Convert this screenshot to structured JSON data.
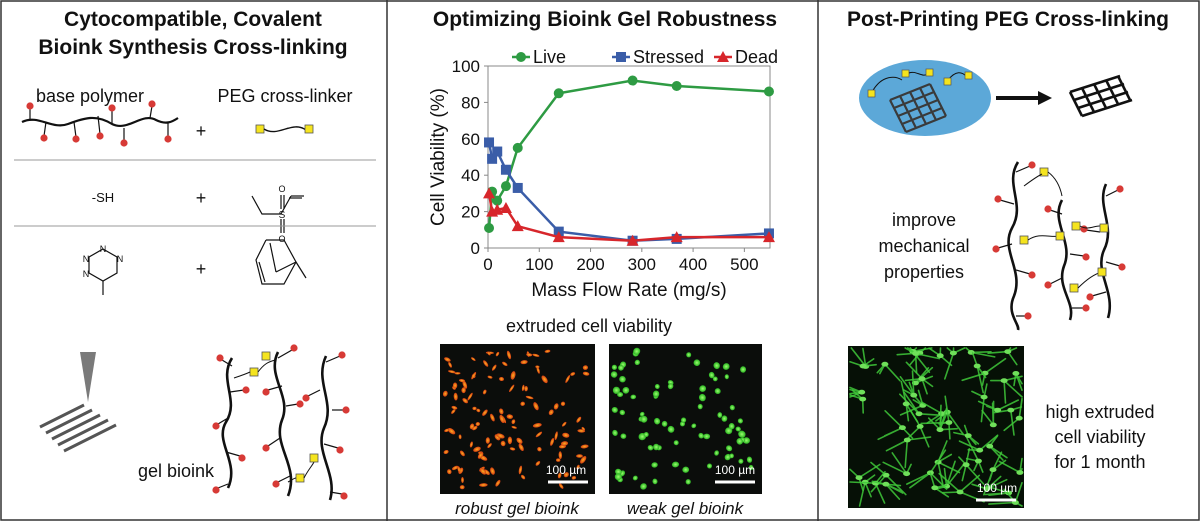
{
  "panel1": {
    "title_line1": "Cytocompatible, Covalent",
    "title_line2": "Bioink Synthesis Cross-linking",
    "base_polymer_label": "base polymer",
    "crosslinker_label": "PEG cross-linker",
    "plus": "+",
    "thiol_label": "-SH",
    "gel_label": "gel bioink"
  },
  "panel2": {
    "title": "Optimizing Bioink Gel Robustness",
    "caption": "extruded cell viability",
    "scale_bar_left": "100 µm",
    "scale_bar_right": "100 µm",
    "image_left_label": "robust gel bioink",
    "image_right_label": "weak gel bioink"
  },
  "panel3": {
    "title": "Post-Printing PEG Cross-linking",
    "improve_line1": "improve",
    "improve_line2": "mechanical",
    "improve_line3": "properties",
    "viability_line1": "high extruded",
    "viability_line2": "cell viability",
    "viability_line3": "for 1 month",
    "scale_bar": "100 µm"
  },
  "chart_data": {
    "type": "line",
    "xlabel": "Mass Flow Rate (mg/s)",
    "ylabel": "Cell Viability (%)",
    "xlim": [
      0,
      550
    ],
    "ylim": [
      0,
      100
    ],
    "xticks": [
      0,
      100,
      200,
      300,
      400,
      500
    ],
    "yticks": [
      0,
      20,
      40,
      60,
      80,
      100
    ],
    "grid": false,
    "legend_position": "top",
    "series": [
      {
        "name": "Live",
        "color": "#2e9b43",
        "marker": "circle",
        "x": [
          2,
          8,
          18,
          35,
          58,
          138,
          282,
          368,
          548
        ],
        "y": [
          11,
          31,
          26,
          34,
          55,
          85,
          92,
          89,
          86
        ]
      },
      {
        "name": "Stressed",
        "color": "#3a5da8",
        "marker": "square",
        "x": [
          2,
          8,
          18,
          35,
          58,
          138,
          282,
          368,
          548
        ],
        "y": [
          58,
          49,
          53,
          43,
          33,
          9,
          4,
          5,
          8
        ]
      },
      {
        "name": "Dead",
        "color": "#d7262b",
        "marker": "triangle",
        "x": [
          2,
          8,
          18,
          35,
          58,
          138,
          282,
          368,
          548
        ],
        "y": [
          30,
          20,
          21,
          22,
          12,
          6,
          4,
          6,
          6
        ]
      }
    ]
  }
}
